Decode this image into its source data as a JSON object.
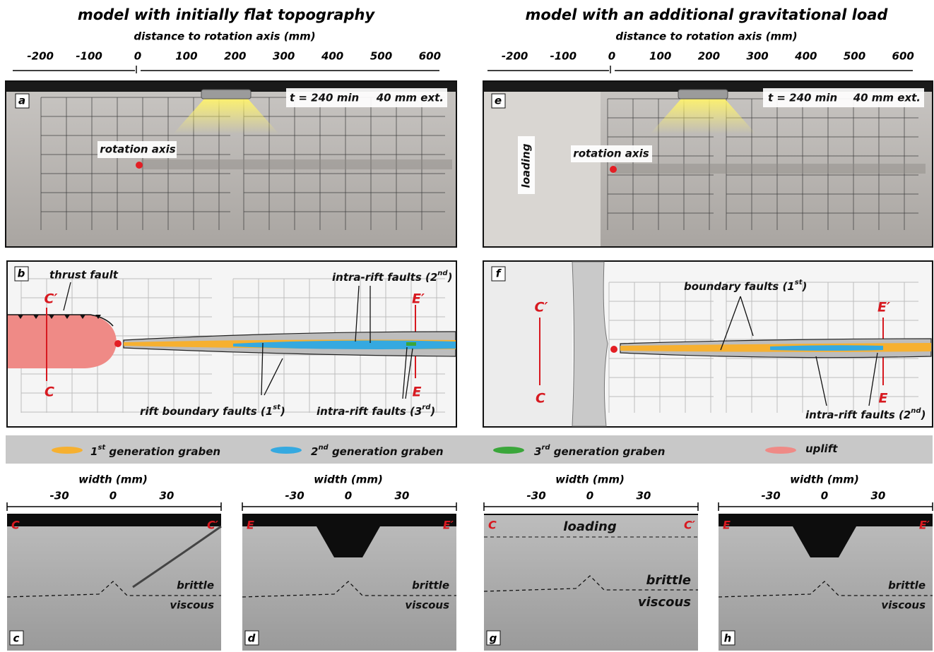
{
  "left": {
    "title": "model with initially flat topography",
    "axis": {
      "label": "distance to rotation axis (mm)",
      "ticks": [
        -200,
        -100,
        0,
        100,
        200,
        300,
        400,
        500,
        600
      ]
    },
    "photo": {
      "letter": "a",
      "time": "t = 240 min",
      "extension": "40 mm ext.",
      "rotation": "rotation axis"
    },
    "map": {
      "letter": "b",
      "thrust": "thrust fault",
      "section_c": [
        "C′",
        "C"
      ],
      "section_e": [
        "E′",
        "E"
      ],
      "labels": [
        {
          "pre": "intra-rift faults (2",
          "sup": "nd",
          "post": ")"
        },
        {
          "pre": "rift boundary faults (1",
          "sup": "st",
          "post": ")"
        },
        {
          "pre": "intra-rift faults (3",
          "sup": "rd",
          "post": ")"
        }
      ]
    }
  },
  "right": {
    "title": "model with an additional  gravitational load",
    "axis": {
      "label": "distance to rotation axis (mm)",
      "ticks": [
        -200,
        -100,
        0,
        100,
        200,
        300,
        400,
        500,
        600
      ]
    },
    "photo": {
      "letter": "e",
      "time": "t = 240 min",
      "extension": "40 mm ext.",
      "rotation": "rotation axis",
      "loading": "loading"
    },
    "map": {
      "letter": "f",
      "section_c": [
        "C′",
        "C"
      ],
      "section_e": [
        "E′",
        "E"
      ],
      "labels": [
        {
          "pre": "boundary faults (1",
          "sup": "st",
          "post": ")"
        },
        {
          "pre": "intra-rift faults (2",
          "sup": "nd",
          "post": ")"
        }
      ]
    }
  },
  "legend": [
    {
      "pre": "1",
      "sup": "st",
      "post": " generation graben",
      "color": "#f6b030"
    },
    {
      "pre": "2",
      "sup": "nd",
      "post": " generation graben",
      "color": "#35a9e0"
    },
    {
      "pre": "3",
      "sup": "rd",
      "post": " generation graben",
      "color": "#3aa63a"
    },
    {
      "pre": "uplift",
      "color": "#ef8a86"
    }
  ],
  "sections": {
    "axis_label": "width (mm)",
    "ticks": [
      -30,
      0,
      30
    ],
    "panels": [
      {
        "letter": "c",
        "left": "C",
        "right": "C′",
        "brittle": "brittle",
        "viscous": "viscous"
      },
      {
        "letter": "d",
        "left": "E",
        "right": "E′",
        "brittle": "brittle",
        "viscous": "viscous"
      },
      {
        "letter": "g",
        "left": "C",
        "right": "C′",
        "brittle": "brittle",
        "viscous": "viscous",
        "loading": "loading"
      },
      {
        "letter": "h",
        "left": "E",
        "right": "E′",
        "brittle": "brittle",
        "viscous": "viscous"
      }
    ]
  }
}
